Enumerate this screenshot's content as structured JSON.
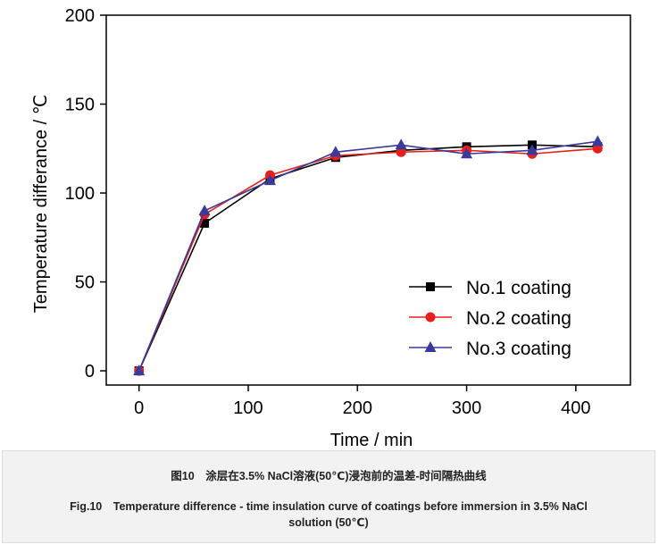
{
  "chart_data": {
    "type": "line",
    "title": "",
    "xlabel": "Time / min",
    "ylabel": "Temperature differance  / ℃",
    "xlim": [
      -30,
      450
    ],
    "ylim": [
      -8,
      200
    ],
    "xticks": [
      0,
      100,
      200,
      300,
      400
    ],
    "yticks": [
      0,
      50,
      100,
      150,
      200
    ],
    "grid": false,
    "legend_position": "bottom-right",
    "x": [
      0,
      60,
      120,
      180,
      240,
      300,
      360,
      420
    ],
    "series": [
      {
        "name": "No.1 coating",
        "color": "#000000",
        "marker": "square",
        "values": [
          0,
          83,
          108,
          120,
          124,
          126,
          127,
          126
        ]
      },
      {
        "name": "No.2 coating",
        "color": "#e8201d",
        "marker": "circle",
        "values": [
          0,
          88,
          110,
          121,
          123,
          124,
          122,
          125
        ]
      },
      {
        "name": "No.3 coating",
        "color": "#3a3a9a",
        "marker": "triangle",
        "values": [
          0,
          90,
          107,
          123,
          127,
          122,
          124,
          129
        ]
      }
    ]
  },
  "caption": {
    "cn": "图10　涂层在3.5% NaCl溶液(50℃)浸泡前的温差-时间隔热曲线",
    "en_line1": "Fig.10　Temperature difference - time insulation curve of coatings before immersion in 3.5% NaCl",
    "en_line2": "solution (50℃)"
  }
}
